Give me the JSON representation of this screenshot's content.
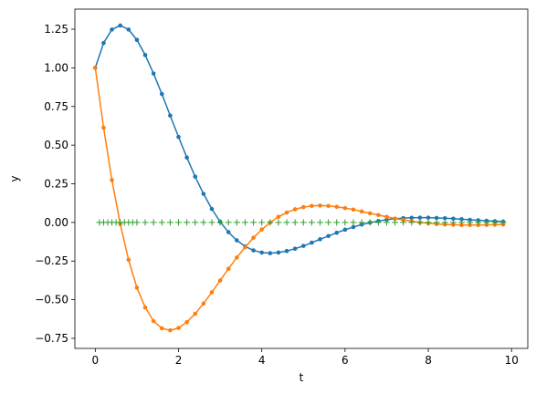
{
  "chart_data": {
    "type": "line",
    "xlabel": "t",
    "ylabel": "y",
    "x": [
      0,
      0.2,
      0.4,
      0.6,
      0.8,
      1.0,
      1.2,
      1.4,
      1.6,
      1.8,
      2.0,
      2.2,
      2.4,
      2.6,
      2.8,
      3.0,
      3.2,
      3.4,
      3.6,
      3.8,
      4.0,
      4.2,
      4.4,
      4.6,
      4.8,
      5.0,
      5.2,
      5.4,
      5.6,
      5.8,
      6.0,
      6.2,
      6.4,
      6.6,
      6.8,
      7.0,
      7.2,
      7.4,
      7.6,
      7.8,
      8.0,
      8.2,
      8.4,
      8.6,
      8.8,
      9.0,
      9.2,
      9.4,
      9.6,
      9.8
    ],
    "series": [
      {
        "color": "#1f77b4",
        "marker": "dot",
        "values": [
          1.0,
          1.161,
          1.248,
          1.274,
          1.248,
          1.181,
          1.083,
          0.963,
          0.831,
          0.691,
          0.553,
          0.42,
          0.296,
          0.185,
          0.087,
          0.004,
          -0.063,
          -0.116,
          -0.155,
          -0.181,
          -0.195,
          -0.199,
          -0.195,
          -0.185,
          -0.17,
          -0.152,
          -0.131,
          -0.109,
          -0.088,
          -0.067,
          -0.047,
          -0.03,
          -0.014,
          -0.001,
          0.009,
          0.018,
          0.024,
          0.028,
          0.03,
          0.031,
          0.031,
          0.029,
          0.027,
          0.024,
          0.021,
          0.017,
          0.014,
          0.011,
          0.008,
          0.005
        ]
      },
      {
        "color": "#ff7f0e",
        "marker": "dot",
        "values": [
          1.0,
          0.613,
          0.274,
          -0.01,
          -0.242,
          -0.422,
          -0.55,
          -0.638,
          -0.685,
          -0.698,
          -0.683,
          -0.645,
          -0.591,
          -0.525,
          -0.452,
          -0.376,
          -0.3,
          -0.227,
          -0.16,
          -0.099,
          -0.046,
          -0.001,
          0.036,
          0.064,
          0.085,
          0.099,
          0.107,
          0.109,
          0.107,
          0.101,
          0.093,
          0.083,
          0.071,
          0.059,
          0.048,
          0.036,
          0.025,
          0.016,
          0.008,
          0.0,
          -0.005,
          -0.01,
          -0.013,
          -0.015,
          -0.017,
          -0.017,
          -0.017,
          -0.016,
          -0.015,
          -0.013
        ]
      },
      {
        "color": "#2ca02c",
        "marker": "plus",
        "x": [
          0.1,
          0.2,
          0.3,
          0.4,
          0.5,
          0.6,
          0.7,
          0.8,
          0.9,
          1.0,
          1.2,
          1.4,
          1.6,
          1.8,
          2.0,
          2.2,
          2.4,
          2.6,
          2.8,
          3.0,
          3.2,
          3.4,
          3.6,
          3.8,
          4.0,
          4.2,
          4.4,
          4.6,
          4.8,
          5.0,
          5.2,
          5.4,
          5.6,
          5.8,
          6.0,
          6.2,
          6.4,
          6.6,
          6.8,
          7.0,
          7.2,
          7.4,
          7.6,
          7.8,
          8.0,
          8.2,
          8.4,
          8.6,
          8.8,
          9.0,
          9.2,
          9.4,
          9.6,
          9.8
        ],
        "values": [
          0,
          0,
          0,
          0,
          0,
          0,
          0,
          0,
          0,
          0,
          0,
          0,
          0,
          0,
          0,
          0,
          0,
          0,
          0,
          0,
          0,
          0,
          0,
          0,
          0,
          0,
          0,
          0,
          0,
          0,
          0,
          0,
          0,
          0,
          0,
          0,
          0,
          0,
          0,
          0,
          0,
          0,
          0,
          0,
          0,
          0,
          0,
          0,
          0,
          0,
          0,
          0,
          0,
          0
        ]
      }
    ],
    "xlim": [
      -0.49,
      10.39
    ],
    "ylim": [
      -0.815,
      1.38
    ],
    "xticks": [
      0,
      2,
      4,
      6,
      8,
      10
    ],
    "yticks": [
      {
        "value": -0.75,
        "label": "−0.75"
      },
      {
        "value": -0.5,
        "label": "−0.50"
      },
      {
        "value": -0.25,
        "label": "−0.25"
      },
      {
        "value": 0,
        "label": "0.00"
      },
      {
        "value": 0.25,
        "label": "0.25"
      },
      {
        "value": 0.5,
        "label": "0.50"
      },
      {
        "value": 0.75,
        "label": "0.75"
      },
      {
        "value": 1.0,
        "label": "1.00"
      },
      {
        "value": 1.25,
        "label": "1.25"
      }
    ]
  }
}
